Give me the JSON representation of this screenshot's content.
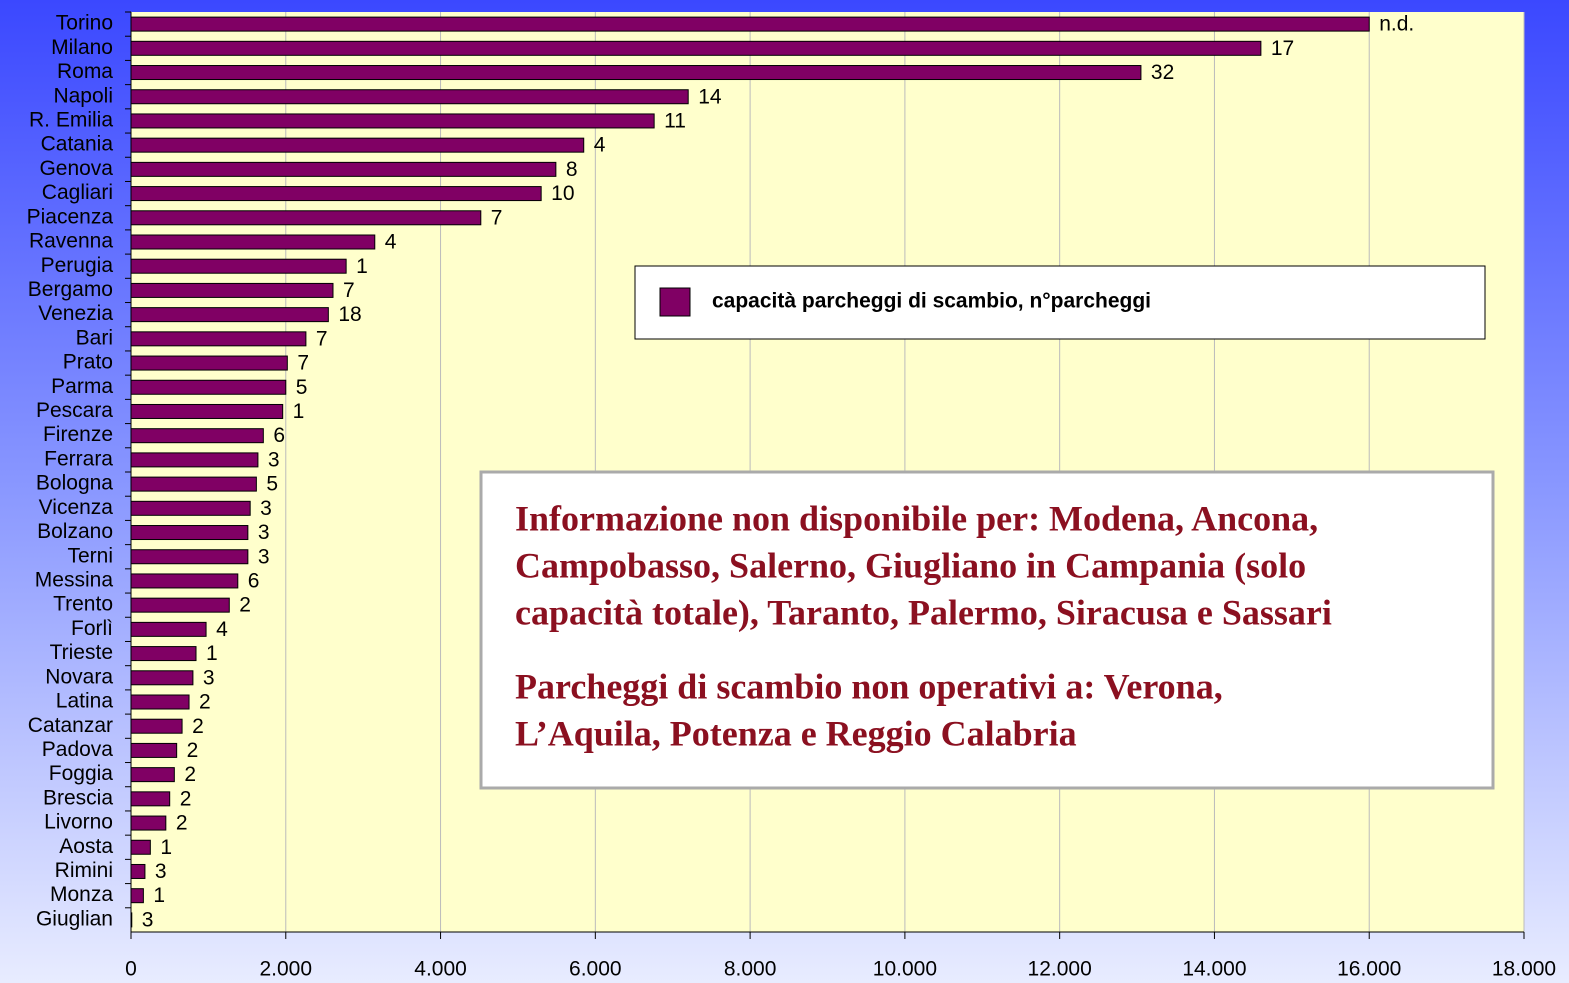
{
  "chart_data": {
    "type": "barh",
    "categories": [
      "Torino",
      "Milano",
      "Roma",
      "Napoli",
      "R. Emilia",
      "Catania",
      "Genova",
      "Cagliari",
      "Piacenza",
      "Ravenna",
      "Perugia",
      "Bergamo",
      "Venezia",
      "Bari",
      "Prato",
      "Parma",
      "Pescara",
      "Firenze",
      "Ferrara",
      "Bologna",
      "Vicenza",
      "Bolzano",
      "Terni",
      "Messina",
      "Trento",
      "Forlì",
      "Trieste",
      "Novara",
      "Latina",
      "Catanzar",
      "Padova",
      "Foggia",
      "Brescia",
      "Livorno",
      "Aosta",
      "Rimini",
      "Monza",
      "Giuglian"
    ],
    "series": [
      {
        "name": "capacità parcheggi di scambio, n°parcheggi",
        "color": "#800064",
        "values": [
          16000,
          14600,
          13050,
          7200,
          6760,
          5850,
          5490,
          5300,
          4520,
          3150,
          2780,
          2610,
          2550,
          2260,
          2020,
          2000,
          1960,
          1710,
          1640,
          1620,
          1540,
          1510,
          1510,
          1380,
          1270,
          970,
          840,
          800,
          750,
          660,
          590,
          560,
          500,
          450,
          250,
          180,
          160,
          10
        ],
        "bar_labels": [
          "n.d.",
          "17",
          "32",
          "14",
          "11",
          "4",
          "8",
          "10",
          "7",
          "4",
          "1",
          "7",
          "18",
          "7",
          "7",
          "5",
          "1",
          "6",
          "3",
          "5",
          "3",
          "3",
          "3",
          "6",
          "2",
          "4",
          "1",
          "3",
          "2",
          "2",
          "2",
          "2",
          "2",
          "2",
          "1",
          "3",
          "1",
          "3"
        ]
      }
    ],
    "xlim": [
      0,
      18000
    ],
    "xticks": [
      0,
      {
        "value": 2000,
        "label": "2.000"
      },
      {
        "value": 4000,
        "label": "4.000"
      },
      {
        "value": 6000,
        "label": "6.000"
      },
      {
        "value": 8000,
        "label": "8.000"
      },
      {
        "value": 10000,
        "label": "10.000"
      },
      {
        "value": 12000,
        "label": "12.000"
      },
      {
        "value": 14000,
        "label": "14.000"
      },
      {
        "value": 16000,
        "label": "16.000"
      },
      {
        "value": 18000,
        "label": "18.000"
      }
    ],
    "grid": true,
    "legend": "upper right",
    "annotation": [
      "Informazione non disponibile per: Modena, Ancona,",
      "Campobasso, Salerno, Giugliano in Campania (solo",
      "capacità totale), Taranto, Palermo, Siracusa e Sassari",
      "Parcheggi di scambio non operativi a: Verona,",
      "L’Aquila, Potenza e Reggio Calabria"
    ]
  }
}
